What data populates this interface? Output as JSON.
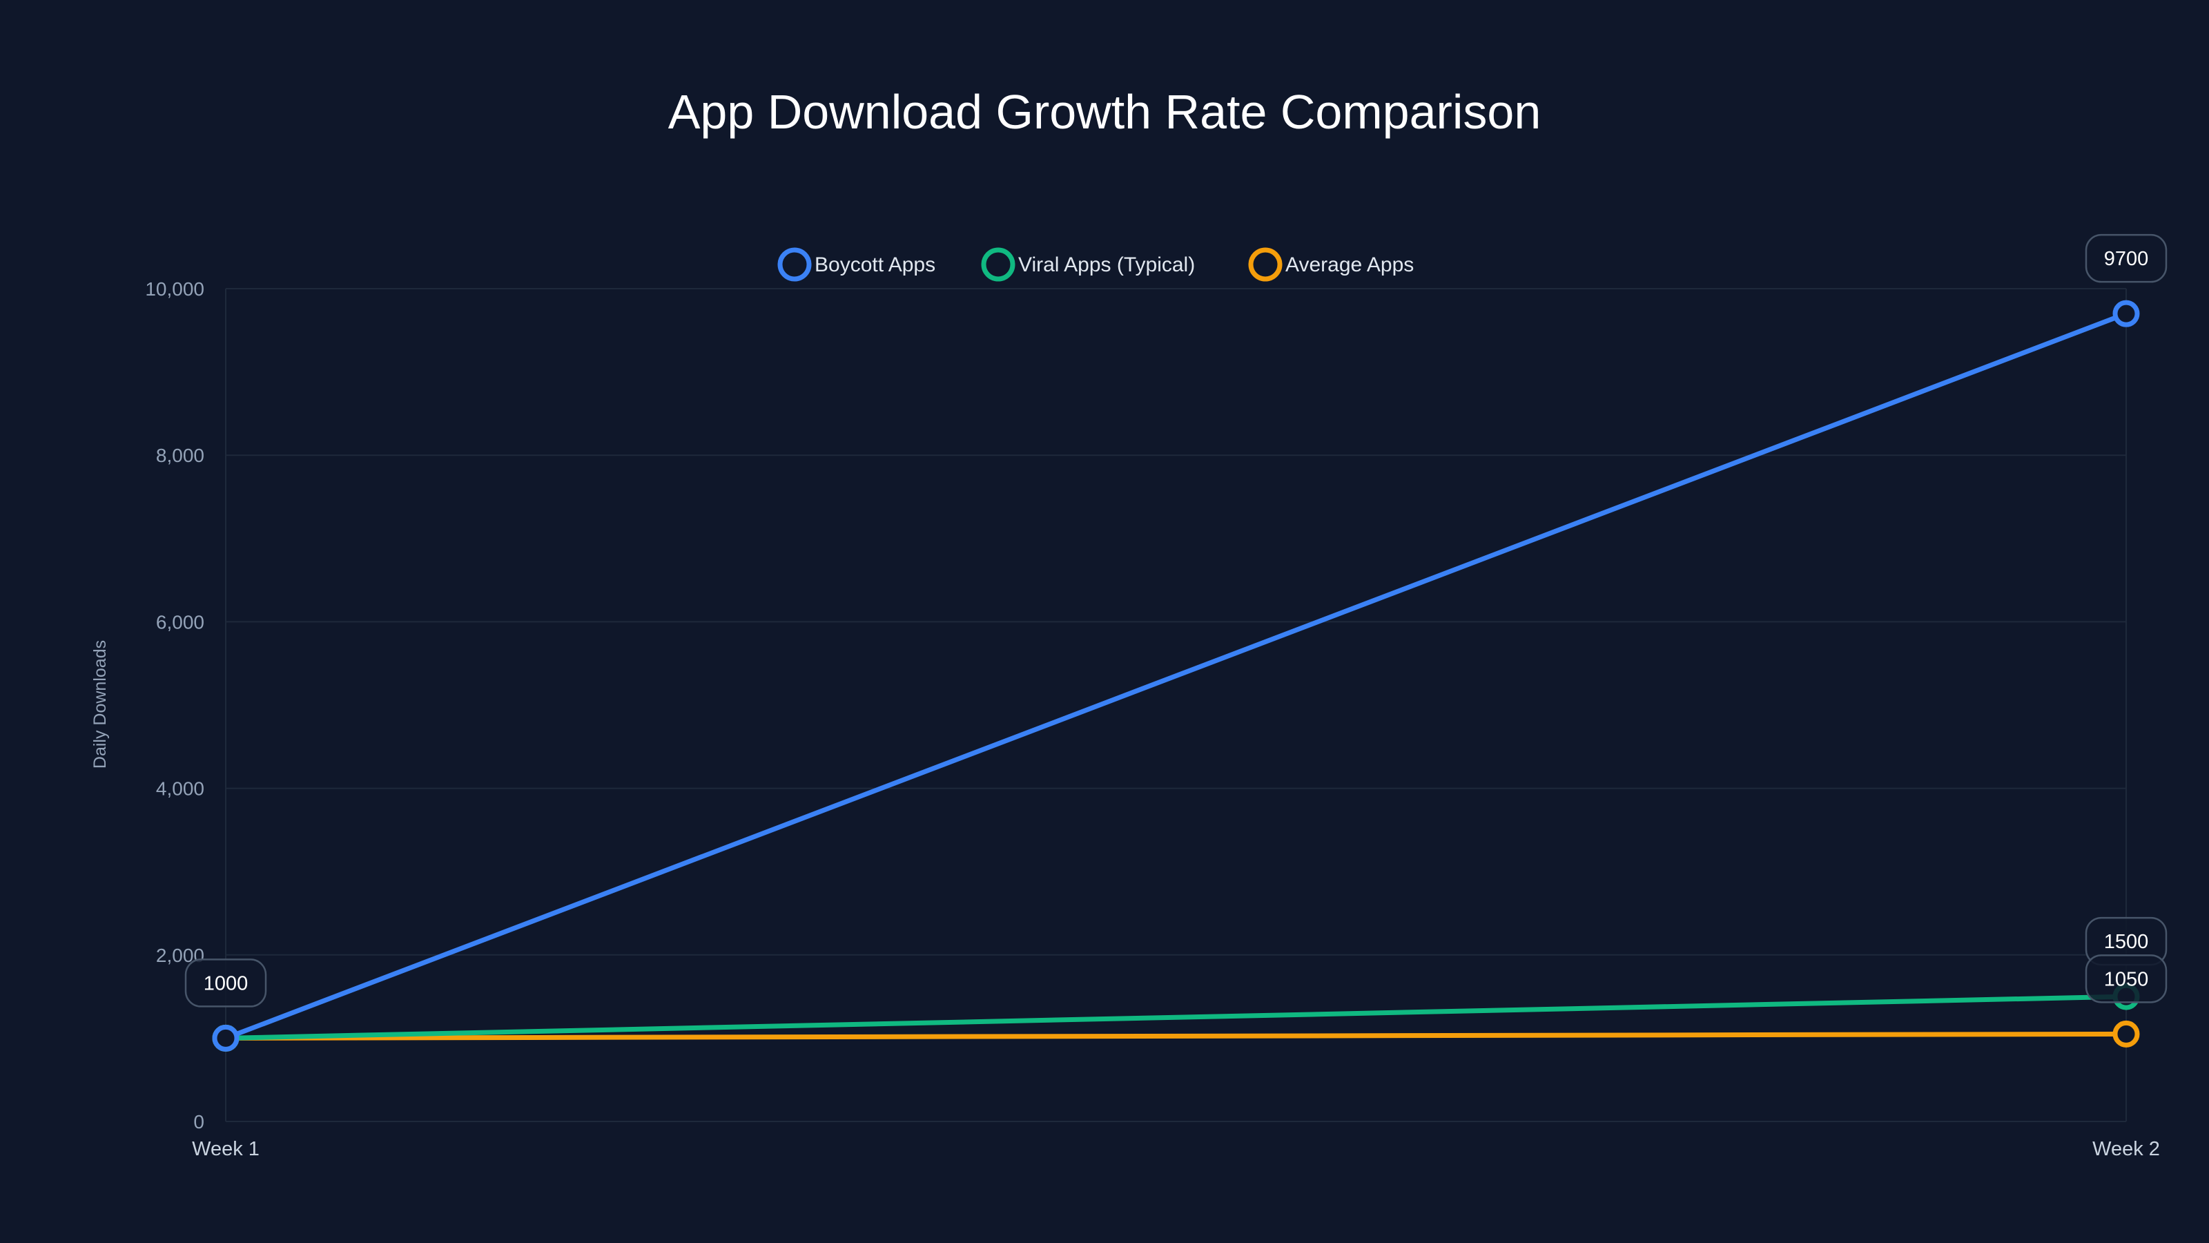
{
  "chart_data": {
    "type": "line",
    "title": "App Download Growth Rate Comparison",
    "xlabel": "",
    "ylabel": "Daily Downloads",
    "categories": [
      "Week 1",
      "Week 2"
    ],
    "ylim": [
      0,
      10000
    ],
    "yticks": [
      0,
      2000,
      4000,
      6000,
      8000,
      10000
    ],
    "ytick_labels": [
      "0",
      "2,000",
      "4,000",
      "6,000",
      "8,000",
      "10,000"
    ],
    "grid": true,
    "legend_position": "top-center",
    "series": [
      {
        "name": "Boycott Apps",
        "color": "#3b82f6",
        "values": [
          1000,
          9700
        ]
      },
      {
        "name": "Viral Apps (Typical)",
        "color": "#10b981",
        "values": [
          1000,
          1500
        ]
      },
      {
        "name": "Average Apps",
        "color": "#f59e0b",
        "values": [
          1000,
          1050
        ]
      }
    ],
    "data_labels": [
      {
        "text": "1000",
        "series": 0,
        "index": 0
      },
      {
        "text": "9700",
        "series": 0,
        "index": 1
      },
      {
        "text": "1500",
        "series": 1,
        "index": 1
      },
      {
        "text": "1050",
        "series": 2,
        "index": 1
      }
    ]
  },
  "colors": {
    "background": "#0f172a",
    "grid": "#1e293b"
  }
}
